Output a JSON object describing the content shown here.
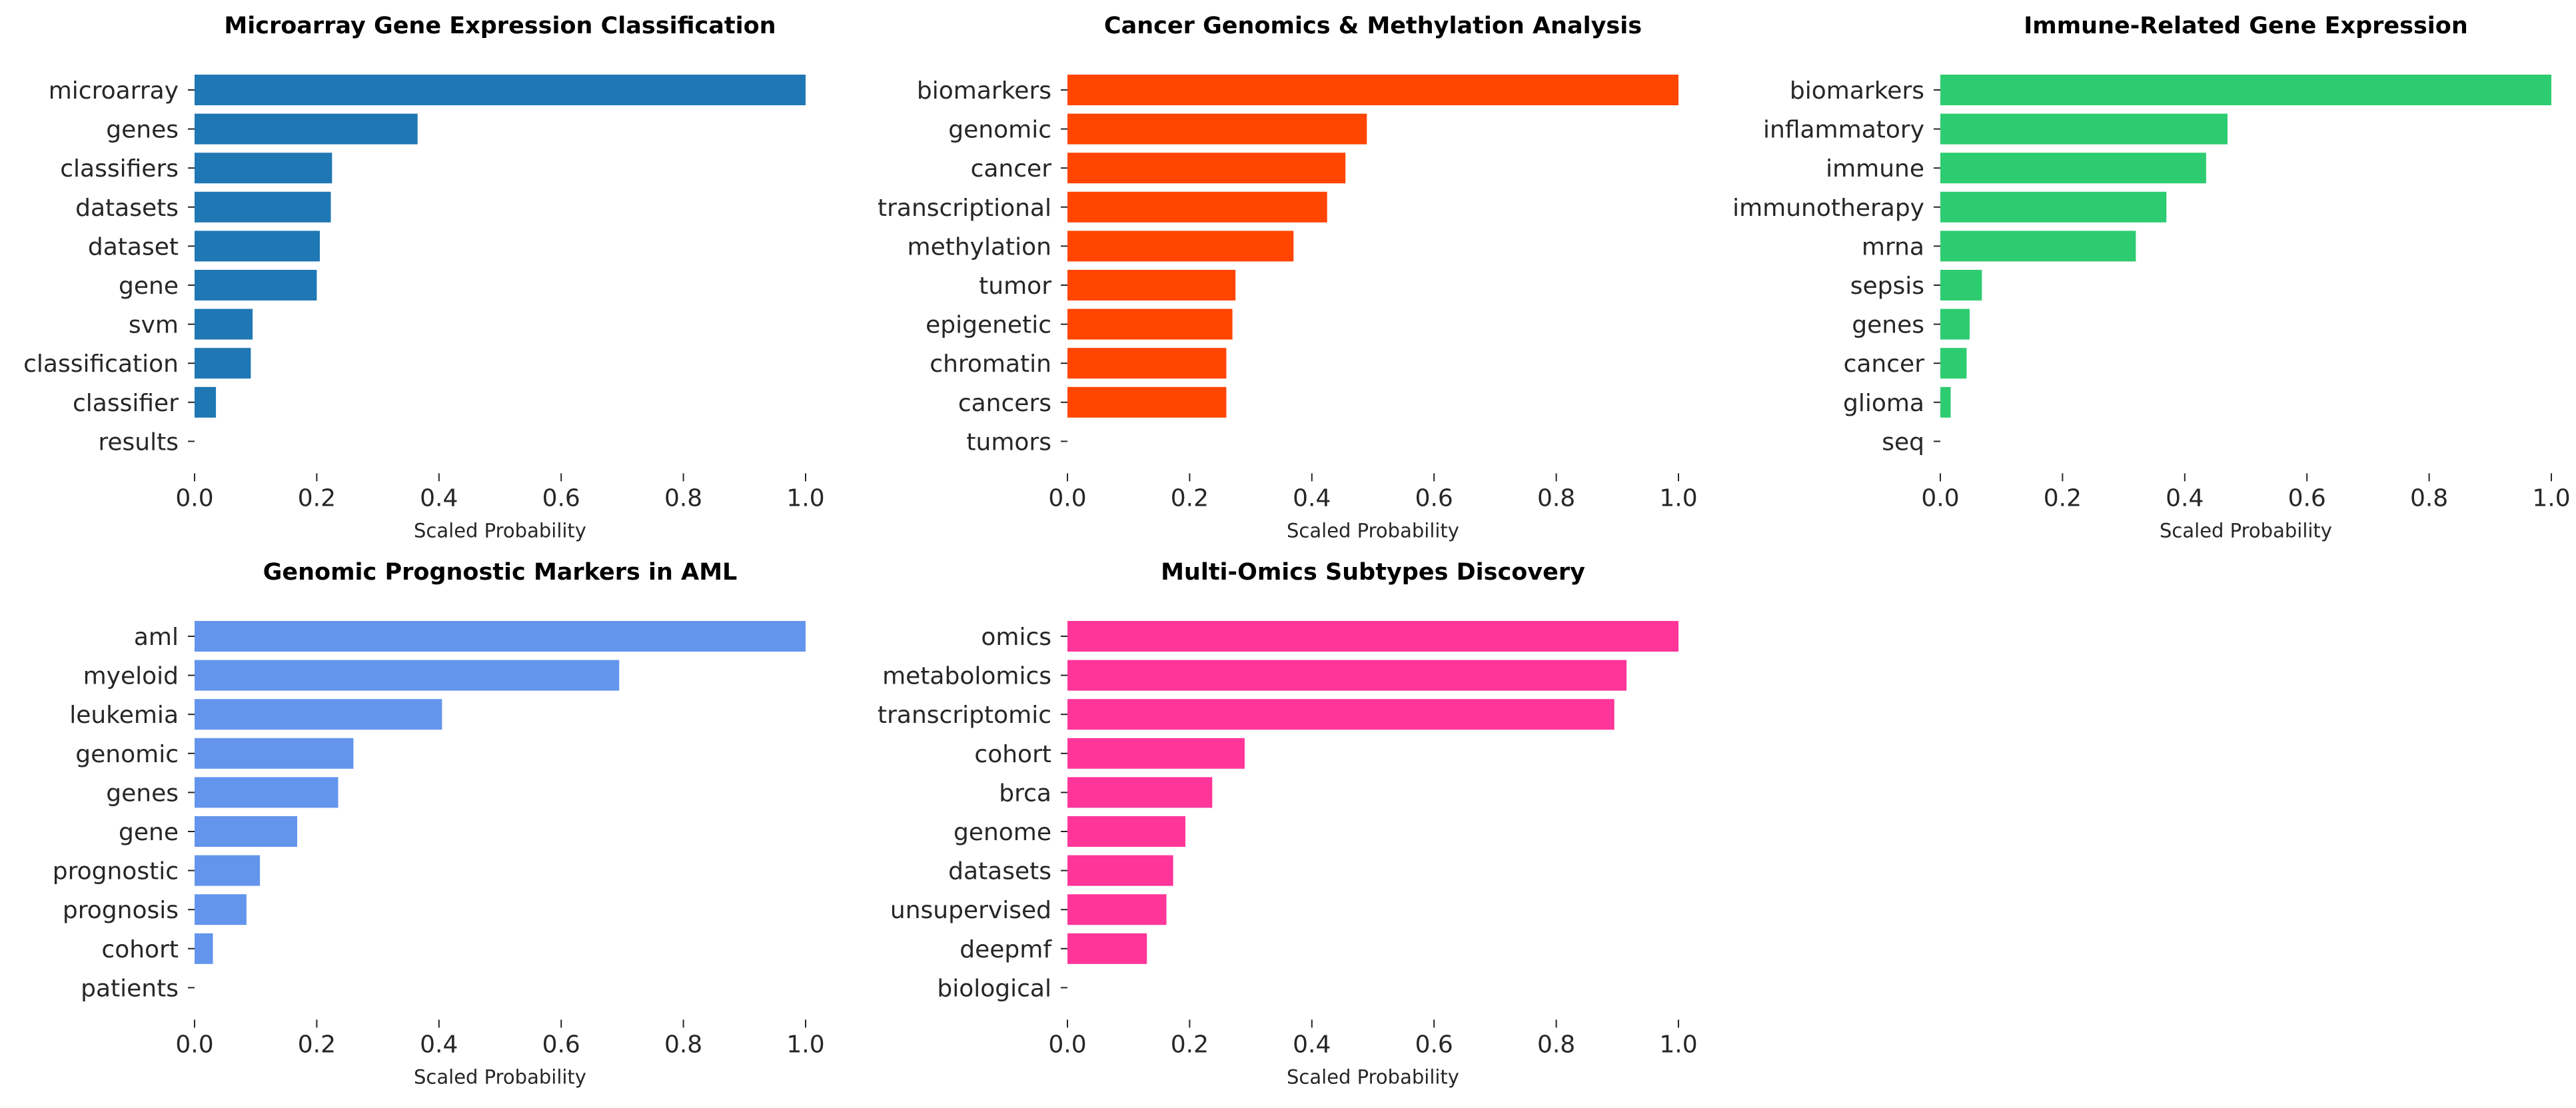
{
  "chart_data": [
    {
      "type": "bar",
      "orientation": "horizontal",
      "title": "Microarray Gene Expression Classification",
      "xlabel": "Scaled Probability",
      "ylabel": "",
      "xlim": [
        0,
        1
      ],
      "xticks": [
        "0.0",
        "0.2",
        "0.4",
        "0.6",
        "0.8",
        "1.0"
      ],
      "categories": [
        "microarray",
        "genes",
        "classifiers",
        "datasets",
        "dataset",
        "gene",
        "svm",
        "classification",
        "classifier",
        "results"
      ],
      "values": [
        1.0,
        0.365,
        0.225,
        0.223,
        0.205,
        0.2,
        0.095,
        0.092,
        0.035,
        0.0
      ],
      "color": "#1f77b4"
    },
    {
      "type": "bar",
      "orientation": "horizontal",
      "title": "Cancer Genomics & Methylation Analysis",
      "xlabel": "Scaled Probability",
      "ylabel": "",
      "xlim": [
        0,
        1
      ],
      "xticks": [
        "0.0",
        "0.2",
        "0.4",
        "0.6",
        "0.8",
        "1.0"
      ],
      "categories": [
        "biomarkers",
        "genomic",
        "cancer",
        "transcriptional",
        "methylation",
        "tumor",
        "epigenetic",
        "chromatin",
        "cancers",
        "tumors"
      ],
      "values": [
        1.0,
        0.49,
        0.455,
        0.425,
        0.37,
        0.275,
        0.27,
        0.26,
        0.26,
        0.0
      ],
      "color": "#ff4500"
    },
    {
      "type": "bar",
      "orientation": "horizontal",
      "title": "Immune-Related Gene Expression",
      "xlabel": "Scaled Probability",
      "ylabel": "",
      "xlim": [
        0,
        1
      ],
      "xticks": [
        "0.0",
        "0.2",
        "0.4",
        "0.6",
        "0.8",
        "1.0"
      ],
      "categories": [
        "biomarkers",
        "inflammatory",
        "immune",
        "immunotherapy",
        "mrna",
        "sepsis",
        "genes",
        "cancer",
        "glioma",
        "seq"
      ],
      "values": [
        1.0,
        0.47,
        0.435,
        0.37,
        0.32,
        0.068,
        0.048,
        0.043,
        0.017,
        0.0
      ],
      "color": "#2ecc71"
    },
    {
      "type": "bar",
      "orientation": "horizontal",
      "title": "Genomic Prognostic Markers in AML",
      "xlabel": "Scaled Probability",
      "ylabel": "",
      "xlim": [
        0,
        1
      ],
      "xticks": [
        "0.0",
        "0.2",
        "0.4",
        "0.6",
        "0.8",
        "1.0"
      ],
      "categories": [
        "aml",
        "myeloid",
        "leukemia",
        "genomic",
        "genes",
        "gene",
        "prognostic",
        "prognosis",
        "cohort",
        "patients"
      ],
      "values": [
        1.0,
        0.695,
        0.405,
        0.26,
        0.235,
        0.168,
        0.107,
        0.085,
        0.03,
        0.0
      ],
      "color": "#6495ed"
    },
    {
      "type": "bar",
      "orientation": "horizontal",
      "title": "Multi-Omics Subtypes Discovery",
      "xlabel": "Scaled Probability",
      "ylabel": "",
      "xlim": [
        0,
        1
      ],
      "xticks": [
        "0.0",
        "0.2",
        "0.4",
        "0.6",
        "0.8",
        "1.0"
      ],
      "categories": [
        "omics",
        "metabolomics",
        "transcriptomic",
        "cohort",
        "brca",
        "genome",
        "datasets",
        "unsupervised",
        "deepmf",
        "biological"
      ],
      "values": [
        1.0,
        0.915,
        0.895,
        0.29,
        0.237,
        0.193,
        0.173,
        0.162,
        0.13,
        0.0
      ],
      "color": "#ff359a"
    }
  ]
}
